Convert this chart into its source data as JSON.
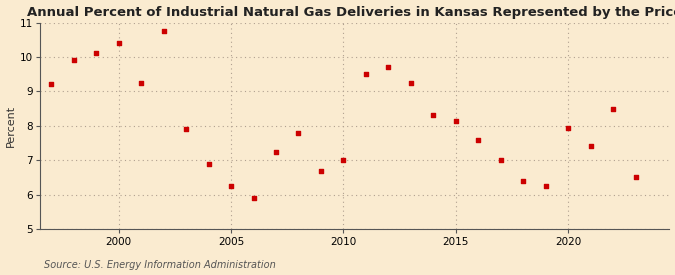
{
  "title": "Annual Percent of Industrial Natural Gas Deliveries in Kansas Represented by the Price",
  "ylabel": "Percent",
  "source": "Source: U.S. Energy Information Administration",
  "background_color": "#faebd0",
  "plot_background_color": "#faebd0",
  "marker_color": "#cc0000",
  "xlim": [
    1996.5,
    2024.5
  ],
  "ylim": [
    5,
    11
  ],
  "yticks": [
    5,
    6,
    7,
    8,
    9,
    10,
    11
  ],
  "xticks": [
    2000,
    2005,
    2010,
    2015,
    2020
  ],
  "data": [
    [
      1997,
      9.2
    ],
    [
      1998,
      9.9
    ],
    [
      1999,
      10.1
    ],
    [
      2000,
      10.4
    ],
    [
      2001,
      9.25
    ],
    [
      2002,
      10.75
    ],
    [
      2003,
      7.9
    ],
    [
      2004,
      6.9
    ],
    [
      2005,
      6.25
    ],
    [
      2006,
      5.9
    ],
    [
      2007,
      7.25
    ],
    [
      2008,
      7.8
    ],
    [
      2009,
      6.7
    ],
    [
      2010,
      7.0
    ],
    [
      2011,
      9.5
    ],
    [
      2012,
      9.7
    ],
    [
      2013,
      9.25
    ],
    [
      2014,
      8.3
    ],
    [
      2015,
      8.15
    ],
    [
      2016,
      7.6
    ],
    [
      2017,
      7.0
    ],
    [
      2018,
      6.4
    ],
    [
      2019,
      6.25
    ],
    [
      2020,
      7.95
    ],
    [
      2021,
      7.4
    ],
    [
      2022,
      8.5
    ],
    [
      2023,
      6.5
    ]
  ]
}
